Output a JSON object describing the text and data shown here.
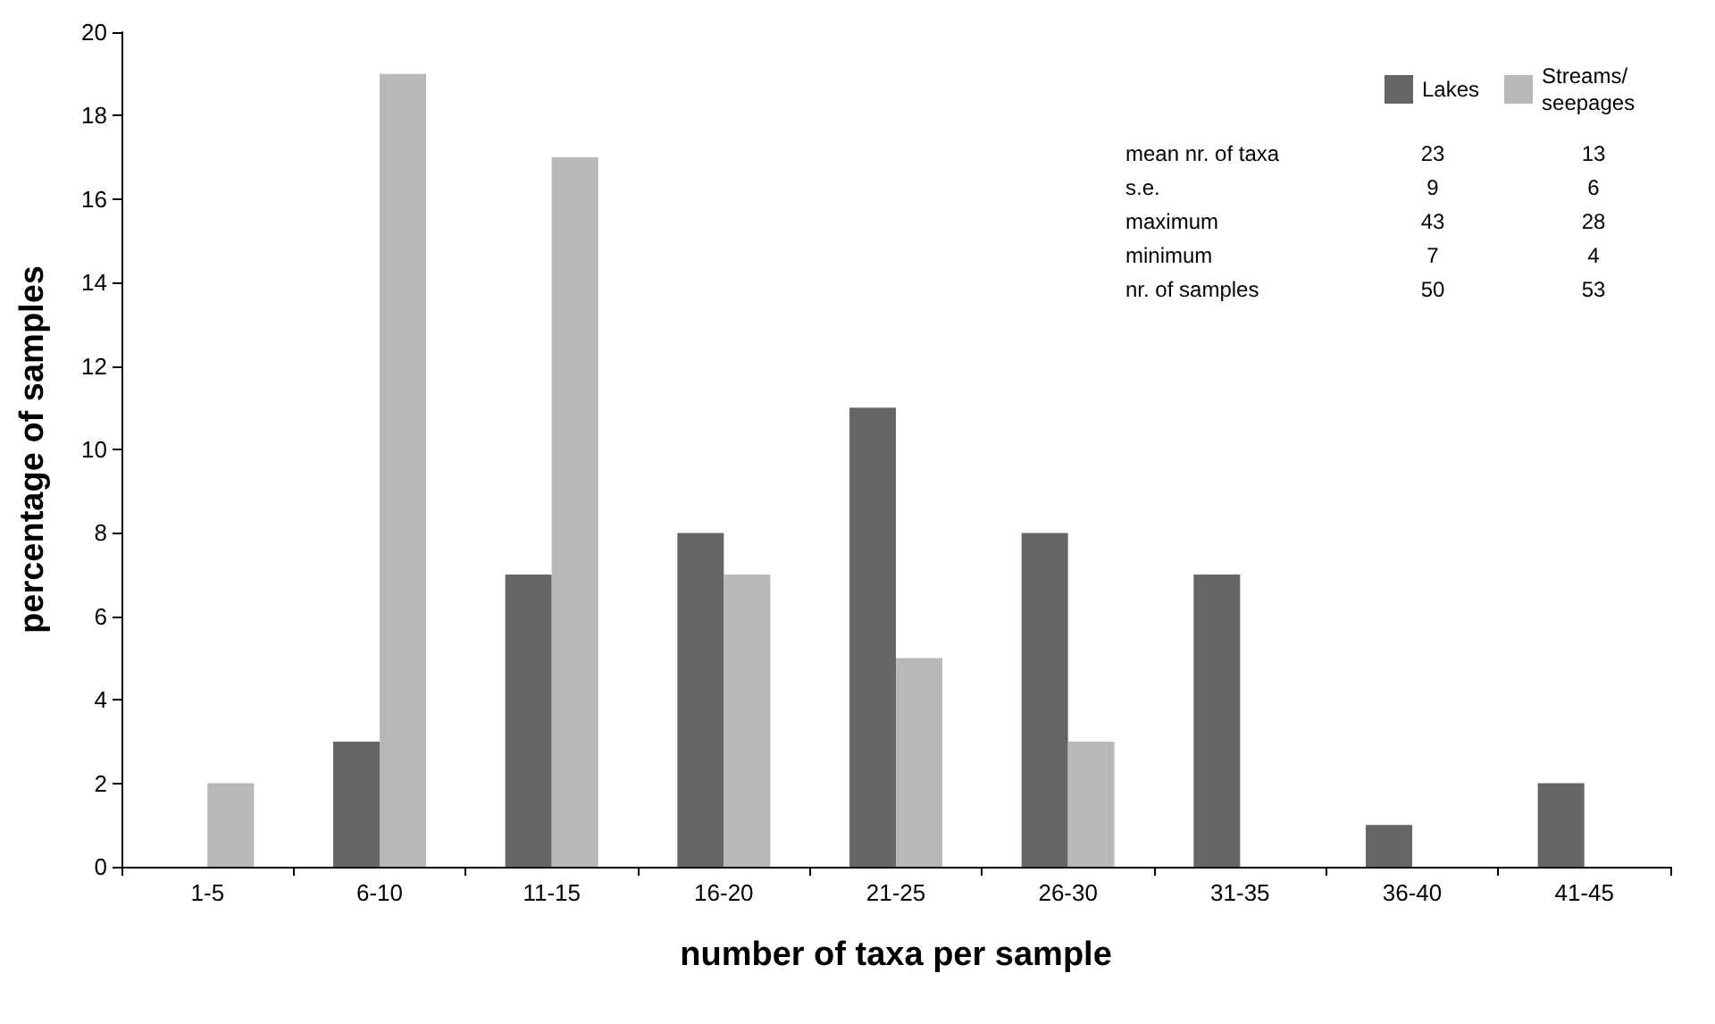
{
  "chart_data": {
    "type": "bar",
    "xlabel": "number of taxa per sample",
    "ylabel": "percentage of samples",
    "categories": [
      "1-5",
      "6-10",
      "11-15",
      "16-20",
      "21-25",
      "26-30",
      "31-35",
      "36-40",
      "41-45"
    ],
    "series": [
      {
        "name": "Lakes",
        "color": "#666666",
        "values": [
          0,
          3,
          7,
          8,
          11,
          8,
          7,
          1,
          2
        ]
      },
      {
        "name": "Streams/\nseepages",
        "color": "#b8b8b8",
        "values": [
          2,
          19,
          17,
          7,
          5,
          3,
          0,
          0,
          0
        ]
      }
    ],
    "ylim": [
      0,
      20
    ],
    "yticks": [
      0,
      2,
      4,
      6,
      8,
      10,
      12,
      14,
      16,
      18,
      20
    ],
    "legend": "top right",
    "annotations": [
      "mean nr. of taxa",
      "23",
      "13",
      "s.e.",
      "9",
      "6",
      "maximum",
      "43",
      "28",
      "minimum",
      "7",
      "4",
      "nr. of samples",
      "50",
      "53"
    ]
  }
}
